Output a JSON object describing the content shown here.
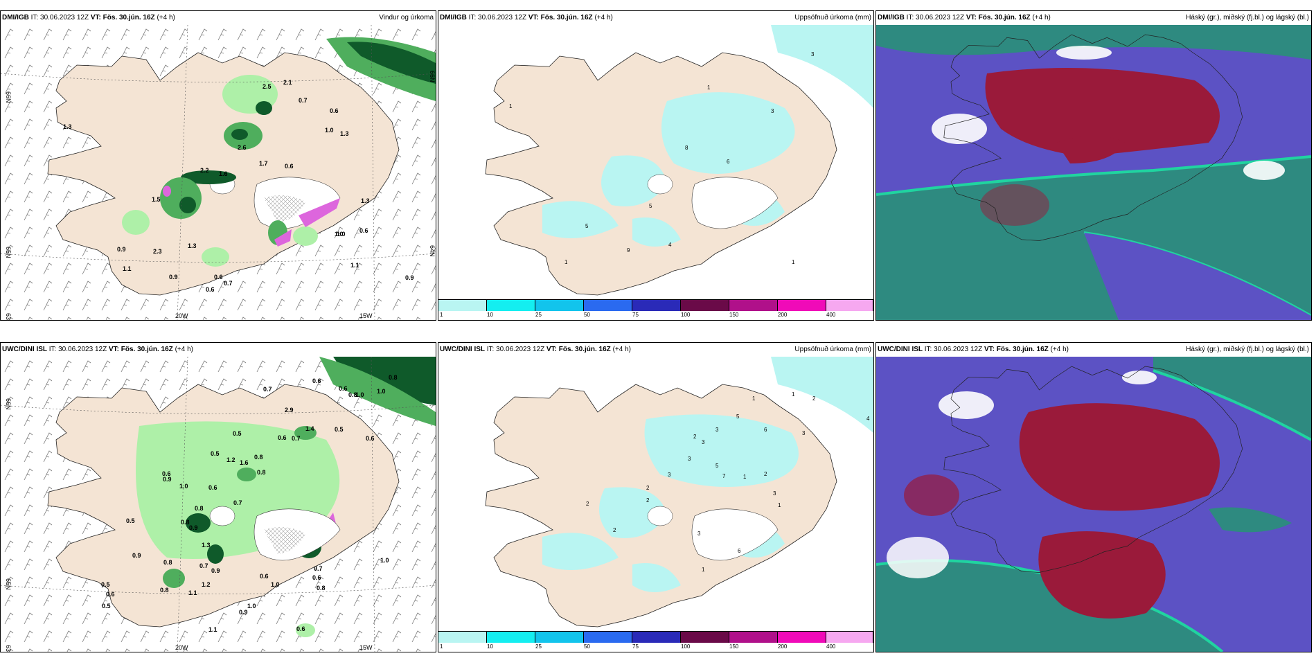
{
  "colors": {
    "land": "#f4e4d4",
    "precip_light": "#b9f5f2",
    "green_dark": "#0f5a2a",
    "green_mid": "#4fae5d",
    "green_light": "#aef0a8",
    "pink": "#dd66dd",
    "cloud_high": "#9a1a3a",
    "cloud_mid": "#5c52c4",
    "cloud_low": "#2e8a80",
    "cloud_edge": "#20d4a0"
  },
  "panels": [
    {
      "id": "top-left",
      "source": "DMI/IGB",
      "it_label": "IT: 30.06.2023 12Z",
      "vt_label": "VT: Fös. 30.jún. 16Z",
      "lead": "(+4 h)",
      "title_right": "Vindur og úrkoma",
      "axis_labels": [
        "66N",
        "65N",
        "64N",
        "63N",
        "20W",
        "15W"
      ],
      "values": [
        "1.3",
        "2.5",
        "2.1",
        "0.7",
        "0.6",
        "1.0",
        "1.3",
        "2.6",
        "1.7",
        "0.6",
        "2.2",
        "1.6",
        "1.5",
        "1.3",
        "1.0",
        "0.9",
        "1.1",
        "0.9",
        "0.6",
        "0.7",
        "0.6",
        "1.1",
        "0.9",
        "0.6",
        "1.0",
        "1.3",
        "2.3"
      ]
    },
    {
      "id": "top-middle",
      "source": "DMI/IGB",
      "it_label": "IT: 30.06.2023 12Z",
      "vt_label": "VT: Fös. 30.jún. 16Z",
      "lead": "(+4 h)",
      "title_right": "Uppsöfnuð úrkoma (mm)",
      "values": [
        "3",
        "1",
        "3",
        "8",
        "6",
        "5",
        "5",
        "9",
        "4",
        "1",
        "1",
        "1"
      ],
      "colorbar": {
        "ticks": [
          "1",
          "10",
          "25",
          "50",
          "75",
          "100",
          "150",
          "200",
          "400"
        ],
        "colors": [
          "#b9f5f2",
          "#14eef0",
          "#12c4ec",
          "#2a6af0",
          "#2a2ab8",
          "#6a0a48",
          "#b0108a",
          "#f00ab8",
          "#f6a8f0"
        ]
      }
    },
    {
      "id": "top-right",
      "source": "DMI/IGB",
      "it_label": "IT: 30.06.2023 12Z",
      "vt_label": "VT: Fös. 30.jún. 16Z",
      "lead": "(+4 h)",
      "title_right": "Háský (gr.), miðský (fj.bl.) og lágský (bl.)"
    },
    {
      "id": "bottom-left",
      "source": "UWC/DINI ISL",
      "it_label": "IT: 30.06.2023 12Z",
      "vt_label": "VT: Fös. 30.jún. 16Z",
      "lead": "(+4 h)",
      "title_right": "",
      "axis_labels": [
        "66N",
        "65N",
        "64N",
        "63N",
        "20W",
        "15W"
      ],
      "values": [
        "0.6",
        "0.8",
        "0.6",
        "0.7",
        "1.0",
        "0.8",
        "1.0",
        "0.5",
        "1.4",
        "2.9",
        "0.5",
        "0.6",
        "0.7",
        "0.6",
        "0.5",
        "0.8",
        "0.6",
        "0.9",
        "1.0",
        "0.6",
        "1.2",
        "1.6",
        "0.8",
        "0.7",
        "0.8",
        "0.5",
        "0.8",
        "0.9",
        "1.3",
        "0.8",
        "0.7",
        "0.9",
        "1.2",
        "0.6",
        "1.0",
        "0.6",
        "0.8",
        "0.7",
        "1.0",
        "0.5",
        "0.6",
        "0.9",
        "0.8",
        "1.1",
        "0.5",
        "1.0",
        "0.9",
        "1.1",
        "0.6"
      ]
    },
    {
      "id": "bottom-middle",
      "source": "UWC/DINI ISL",
      "it_label": "IT: 30.06.2023 12Z",
      "vt_label": "VT: Fös. 30.jún. 16Z",
      "lead": "(+4 h)",
      "title_right": "Uppsöfnuð úrkoma (mm)",
      "values": [
        "4",
        "2",
        "1",
        "1",
        "5",
        "6",
        "3",
        "2",
        "3",
        "3",
        "5",
        "7",
        "1",
        "2",
        "3",
        "2",
        "2",
        "3",
        "3",
        "1",
        "2",
        "3",
        "2",
        "6",
        "1"
      ],
      "colorbar": {
        "ticks": [
          "1",
          "10",
          "25",
          "50",
          "75",
          "100",
          "150",
          "200",
          "400"
        ],
        "colors": [
          "#b9f5f2",
          "#14eef0",
          "#12c4ec",
          "#2a6af0",
          "#2a2ab8",
          "#6a0a48",
          "#b0108a",
          "#f00ab8",
          "#f6a8f0"
        ]
      }
    },
    {
      "id": "bottom-right",
      "source": "UWC/DINI ISL",
      "it_label": "IT: 30.06.2023 12Z",
      "vt_label": "VT: Fös. 30.jún. 16Z",
      "lead": "(+4 h)",
      "title_right": "Háský (gr.), miðský (fj.bl.) og lágský (bl.)"
    }
  ]
}
